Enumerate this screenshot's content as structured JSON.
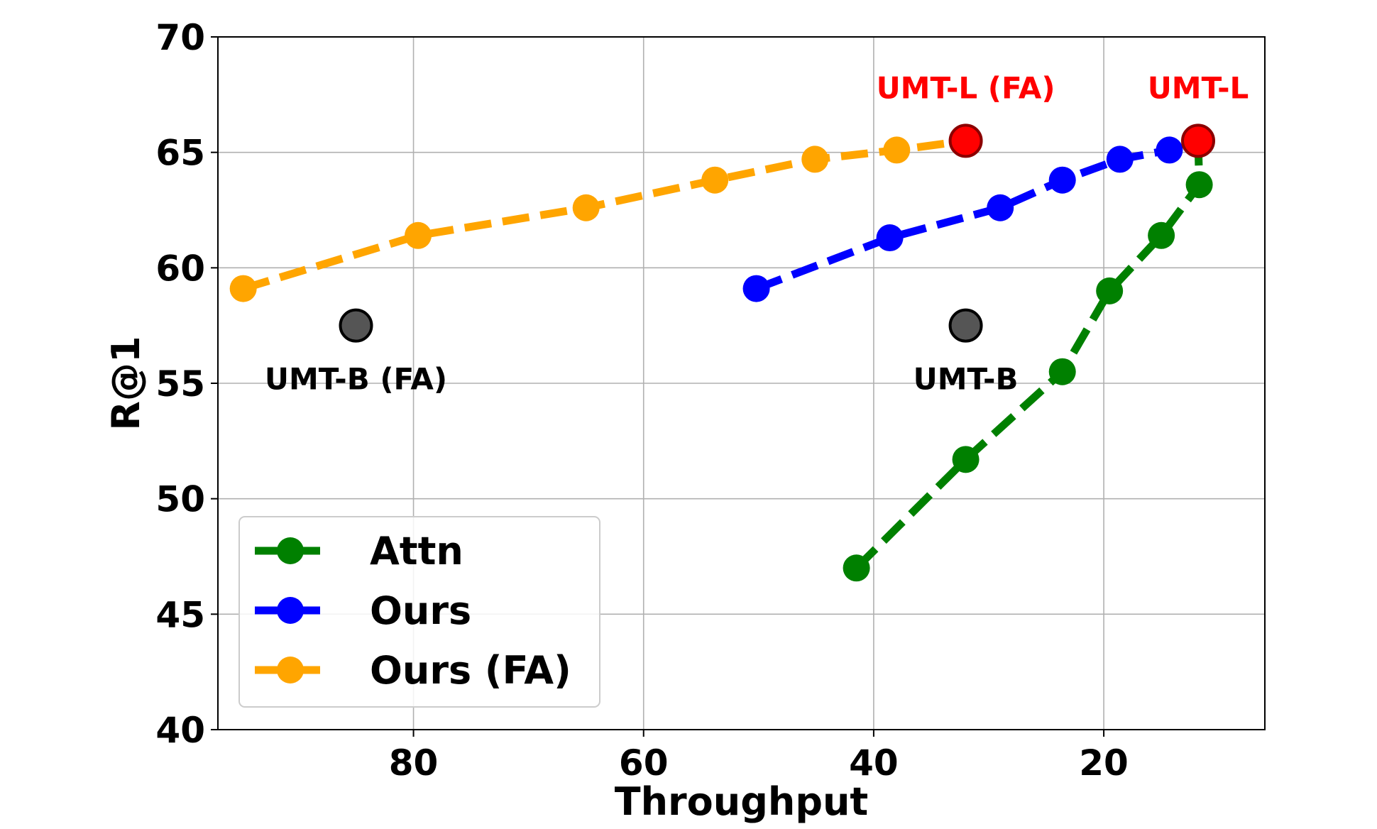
{
  "chart_data": {
    "type": "line",
    "xlabel": "Throughput",
    "ylabel": "R@1",
    "xlim": [
      97,
      6
    ],
    "ylim": [
      40,
      70
    ],
    "x_reversed": true,
    "x_ticks": [
      80,
      60,
      40,
      20
    ],
    "y_ticks": [
      40,
      45,
      50,
      55,
      60,
      65,
      70
    ],
    "grid": true,
    "legend_position": "lower-left",
    "series": [
      {
        "name": "Attn",
        "color": "#008000",
        "linestyle": "dashed",
        "points": [
          {
            "x": 41.5,
            "y": 47.0
          },
          {
            "x": 32.0,
            "y": 51.7
          },
          {
            "x": 23.6,
            "y": 55.5
          },
          {
            "x": 19.5,
            "y": 59.0
          },
          {
            "x": 15.0,
            "y": 61.4
          },
          {
            "x": 11.7,
            "y": 63.6
          },
          {
            "x": 11.8,
            "y": 65.5
          }
        ]
      },
      {
        "name": "Ours",
        "color": "#0000ff",
        "linestyle": "dashed",
        "points": [
          {
            "x": 50.2,
            "y": 59.1
          },
          {
            "x": 38.6,
            "y": 61.3
          },
          {
            "x": 29.0,
            "y": 62.6
          },
          {
            "x": 23.6,
            "y": 63.8
          },
          {
            "x": 18.6,
            "y": 64.7
          },
          {
            "x": 14.3,
            "y": 65.1
          },
          {
            "x": 11.8,
            "y": 65.5
          }
        ]
      },
      {
        "name": "Ours (FA)",
        "color": "#ffa500",
        "linestyle": "dashed",
        "points": [
          {
            "x": 94.8,
            "y": 59.1
          },
          {
            "x": 79.6,
            "y": 61.4
          },
          {
            "x": 65.0,
            "y": 62.6
          },
          {
            "x": 53.8,
            "y": 63.8
          },
          {
            "x": 45.1,
            "y": 64.7
          },
          {
            "x": 38.0,
            "y": 65.1
          },
          {
            "x": 32.0,
            "y": 65.5
          }
        ]
      }
    ],
    "reference_points": [
      {
        "label": "UMT-L (FA)",
        "x": 32.0,
        "y": 65.5,
        "color": "#ff0000",
        "label_color": "#ff0000",
        "label_pos": "above"
      },
      {
        "label": "UMT-L",
        "x": 11.8,
        "y": 65.5,
        "color": "#ff0000",
        "label_color": "#ff0000",
        "label_pos": "above"
      },
      {
        "label": "UMT-B (FA)",
        "x": 85.0,
        "y": 57.5,
        "color": "#555555",
        "label_color": "#000000",
        "label_pos": "below"
      },
      {
        "label": "UMT-B",
        "x": 32.0,
        "y": 57.5,
        "color": "#555555",
        "label_color": "#000000",
        "label_pos": "below"
      }
    ]
  }
}
